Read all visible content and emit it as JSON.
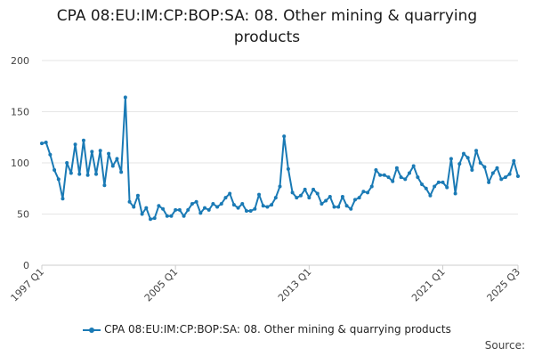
{
  "colors": {
    "series": "#1a7ab5",
    "grid": "#e6e6e6",
    "axis": "#cccccc"
  },
  "source_label": "Source:",
  "chart_data": {
    "type": "line",
    "title": "CPA 08:EU:IM:CP:BOP:SA: 08. Other mining & quarrying products",
    "title_lines": [
      "CPA 08:EU:IM:CP:BOP:SA: 08. Other mining & quarrying",
      "products"
    ],
    "xlabel": "",
    "ylabel": "",
    "ylim": [
      0,
      200
    ],
    "yticks": [
      0,
      50,
      100,
      150,
      200
    ],
    "x_tick_labels": [
      "1997 Q1",
      "2005 Q1",
      "2013 Q1",
      "2021 Q1",
      "2025 Q3"
    ],
    "x_tick_index": [
      0,
      32,
      64,
      96,
      114
    ],
    "grid": true,
    "legend_position": "bottom",
    "series": [
      {
        "name": "CPA 08:EU:IM:CP:BOP:SA: 08. Other mining & quarrying products",
        "x_start": "1997 Q1",
        "values": [
          119,
          120,
          108,
          93,
          84,
          65,
          100,
          90,
          118,
          89,
          122,
          88,
          111,
          89,
          112,
          78,
          109,
          97,
          104,
          91,
          164,
          62,
          57,
          68,
          50,
          56,
          45,
          46,
          58,
          55,
          48,
          48,
          54,
          54,
          48,
          54,
          60,
          62,
          51,
          56,
          54,
          60,
          57,
          60,
          66,
          70,
          59,
          56,
          60,
          53,
          53,
          55,
          69,
          58,
          57,
          59,
          66,
          77,
          126,
          94,
          71,
          66,
          68,
          74,
          66,
          74,
          70,
          60,
          63,
          67,
          57,
          57,
          67,
          58,
          55,
          64,
          66,
          72,
          71,
          77,
          93,
          88,
          88,
          86,
          82,
          95,
          86,
          84,
          90,
          97,
          86,
          79,
          75,
          68,
          77,
          81,
          81,
          76,
          104,
          70,
          99,
          109,
          105,
          93,
          112,
          100,
          96,
          81,
          90,
          95,
          84,
          86,
          89,
          102,
          87
        ]
      }
    ]
  }
}
